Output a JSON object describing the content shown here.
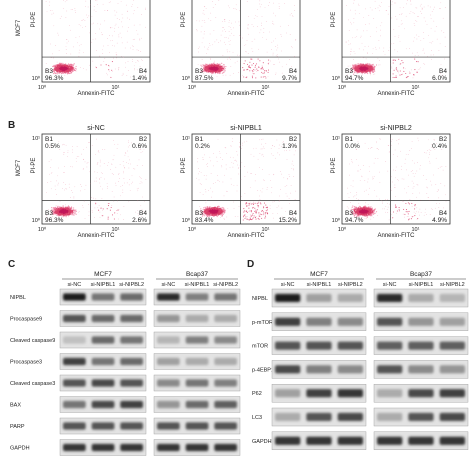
{
  "panel_labels": {
    "b": "B",
    "c": "C",
    "d": "D"
  },
  "flow": {
    "row_labels": {
      "top": "MCF7",
      "bottom": "MCF7"
    },
    "x_axis_label": "Annexin-FITC",
    "y_axis_label": "PI-PE",
    "tick_labels": [
      "10⁰",
      "10¹"
    ],
    "conditions": [
      "si-NC",
      "si-NIPBL1",
      "si-NIPBL2"
    ],
    "plots": [
      {
        "quads": [
          "B1",
          "B2",
          "B3",
          "B4"
        ],
        "vals": [
          "1.1%",
          "0.8%",
          "96.3%",
          "1.4%"
        ],
        "showCond": false
      },
      {
        "quads": [
          "B1",
          "B2",
          "B3",
          "B4"
        ],
        "vals": [
          "0.8%",
          "2.0%",
          "87.5%",
          "9.7%"
        ],
        "showCond": false
      },
      {
        "quads": [
          "B1",
          "B2",
          "B3",
          "B4"
        ],
        "vals": [
          "0.8%",
          "1.7%",
          "94.7%",
          "6.0%"
        ],
        "showCond": false
      },
      {
        "quads": [
          "B1",
          "B2",
          "B3",
          "B4"
        ],
        "vals": [
          "0.5%",
          "0.6%",
          "96.3%",
          "2.6%"
        ],
        "showCond": true
      },
      {
        "quads": [
          "B1",
          "B2",
          "B3",
          "B4"
        ],
        "vals": [
          "0.2%",
          "1.3%",
          "83.4%",
          "15.2%"
        ],
        "showCond": true
      },
      {
        "quads": [
          "B1",
          "B2",
          "B3",
          "B4"
        ],
        "vals": [
          "0.0%",
          "0.4%",
          "94.7%",
          "4.9%"
        ],
        "showCond": true
      }
    ]
  },
  "blot_c": {
    "groups": [
      "MCF7",
      "Bcap37"
    ],
    "lanes": [
      "si-NC",
      "si-NIPBL1",
      "si-NIPBL2"
    ],
    "rows": [
      {
        "label": "NIPBL",
        "levels": [
          [
            0.95,
            0.55,
            0.6
          ],
          [
            0.9,
            0.5,
            0.55
          ]
        ]
      },
      {
        "label": "Procaspase9",
        "levels": [
          [
            0.7,
            0.6,
            0.6
          ],
          [
            0.4,
            0.3,
            0.3
          ]
        ]
      },
      {
        "label": "Cleaved caspase9",
        "levels": [
          [
            0.2,
            0.6,
            0.55
          ],
          [
            0.25,
            0.5,
            0.45
          ]
        ]
      },
      {
        "label": "Procaspase3",
        "levels": [
          [
            0.8,
            0.55,
            0.6
          ],
          [
            0.35,
            0.3,
            0.3
          ]
        ]
      },
      {
        "label": "Cleaved caspase3",
        "levels": [
          [
            0.7,
            0.75,
            0.7
          ],
          [
            0.45,
            0.55,
            0.5
          ]
        ]
      },
      {
        "label": "BAX",
        "levels": [
          [
            0.55,
            0.75,
            0.8
          ],
          [
            0.4,
            0.6,
            0.65
          ]
        ]
      },
      {
        "label": "PARP",
        "levels": [
          [
            0.7,
            0.7,
            0.7
          ],
          [
            0.7,
            0.7,
            0.7
          ]
        ]
      },
      {
        "label": "GAPDH",
        "levels": [
          [
            0.85,
            0.85,
            0.85
          ],
          [
            0.85,
            0.85,
            0.85
          ]
        ]
      }
    ]
  },
  "blot_d": {
    "groups": [
      "MCF7",
      "Bcap37"
    ],
    "lanes": [
      "si-NC",
      "si-NIPBL1",
      "si-NIPBL2"
    ],
    "rows": [
      {
        "label": "NIPBL",
        "levels": [
          [
            0.95,
            0.35,
            0.3
          ],
          [
            0.9,
            0.3,
            0.25
          ]
        ]
      },
      {
        "label": "p-mTOR",
        "levels": [
          [
            0.8,
            0.5,
            0.45
          ],
          [
            0.7,
            0.4,
            0.35
          ]
        ]
      },
      {
        "label": "mTOR",
        "levels": [
          [
            0.7,
            0.7,
            0.7
          ],
          [
            0.65,
            0.65,
            0.65
          ]
        ]
      },
      {
        "label": "p-4EBP1",
        "levels": [
          [
            0.75,
            0.5,
            0.45
          ],
          [
            0.7,
            0.45,
            0.4
          ]
        ]
      },
      {
        "label": "P62",
        "levels": [
          [
            0.35,
            0.8,
            0.85
          ],
          [
            0.3,
            0.75,
            0.8
          ]
        ]
      },
      {
        "label": "LC3",
        "levels": [
          [
            0.3,
            0.7,
            0.75
          ],
          [
            0.3,
            0.7,
            0.75
          ]
        ]
      },
      {
        "label": "GAPDH",
        "levels": [
          [
            0.85,
            0.85,
            0.85
          ],
          [
            0.85,
            0.85,
            0.85
          ]
        ]
      }
    ]
  }
}
